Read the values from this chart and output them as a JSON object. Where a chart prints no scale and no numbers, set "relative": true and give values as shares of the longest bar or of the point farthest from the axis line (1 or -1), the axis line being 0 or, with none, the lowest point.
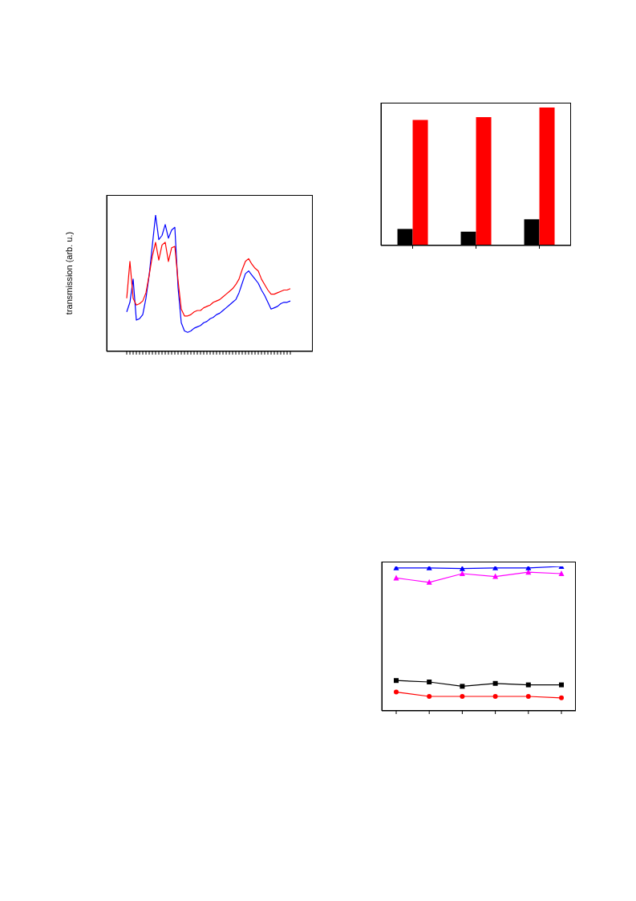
{
  "chart_data": [
    {
      "type": "line",
      "relative": true,
      "ylabel": "transmission (arb. u.)",
      "categories": [
        null,
        null,
        null,
        null,
        null,
        null,
        null,
        null,
        null,
        null,
        null,
        null,
        null,
        null,
        null,
        null,
        null,
        null,
        null,
        null,
        null,
        null,
        null,
        null,
        null,
        null,
        null,
        null,
        null,
        null,
        null,
        null,
        null,
        null,
        null,
        null,
        null,
        null,
        null,
        null,
        null,
        null,
        null,
        null,
        null,
        null,
        null,
        null,
        null,
        null,
        null,
        null
      ],
      "series": [
        {
          "color": "#ff0000",
          "values": [
            0.39,
            0.66,
            0.39,
            0.34,
            0.35,
            0.37,
            0.43,
            0.56,
            0.7,
            0.8,
            0.67,
            0.78,
            0.8,
            0.66,
            0.76,
            0.77,
            0.52,
            0.31,
            0.26,
            0.26,
            0.27,
            0.29,
            0.3,
            0.3,
            0.32,
            0.33,
            0.34,
            0.36,
            0.37,
            0.38,
            0.4,
            0.42,
            0.44,
            0.46,
            0.49,
            0.53,
            0.6,
            0.66,
            0.68,
            0.64,
            0.61,
            0.59,
            0.53,
            0.49,
            0.45,
            0.42,
            0.42,
            0.43,
            0.44,
            0.45,
            0.45,
            0.46
          ]
        },
        {
          "color": "#0000ff",
          "values": [
            0.29,
            0.36,
            0.53,
            0.23,
            0.24,
            0.27,
            0.39,
            0.56,
            0.78,
            1,
            0.82,
            0.85,
            0.93,
            0.83,
            0.89,
            0.91,
            0.47,
            0.21,
            0.15,
            0.14,
            0.15,
            0.17,
            0.18,
            0.19,
            0.21,
            0.22,
            0.24,
            0.25,
            0.27,
            0.28,
            0.3,
            0.32,
            0.34,
            0.36,
            0.38,
            0.43,
            0.5,
            0.57,
            0.59,
            0.56,
            0.53,
            0.5,
            0.45,
            0.41,
            0.36,
            0.31,
            0.32,
            0.33,
            0.35,
            0.36,
            0.36,
            0.37
          ]
        }
      ]
    },
    {
      "type": "bar",
      "relative": true,
      "categories": [
        null,
        null,
        null
      ],
      "series": [
        {
          "color": "#000000",
          "values": [
            0.12,
            0.1,
            0.19
          ]
        },
        {
          "color": "#ff0000",
          "values": [
            0.91,
            0.93,
            1
          ]
        }
      ]
    },
    {
      "type": "line",
      "relative": true,
      "categories": [
        null,
        null,
        null,
        null,
        null,
        null
      ],
      "series": [
        {
          "color": "#0000ff",
          "marker": "triangle",
          "values": [
            0.99,
            0.99,
            0.985,
            0.99,
            0.99,
            1
          ]
        },
        {
          "color": "#ff00ff",
          "marker": "triangle",
          "values": [
            0.92,
            0.89,
            0.95,
            0.93,
            0.96,
            0.95
          ]
        },
        {
          "color": "#000000",
          "marker": "square",
          "values": [
            0.21,
            0.2,
            0.17,
            0.19,
            0.18,
            0.18
          ]
        },
        {
          "color": "#ff0000",
          "marker": "circle",
          "values": [
            0.13,
            0.1,
            0.1,
            0.1,
            0.1,
            0.09
          ]
        }
      ]
    }
  ]
}
